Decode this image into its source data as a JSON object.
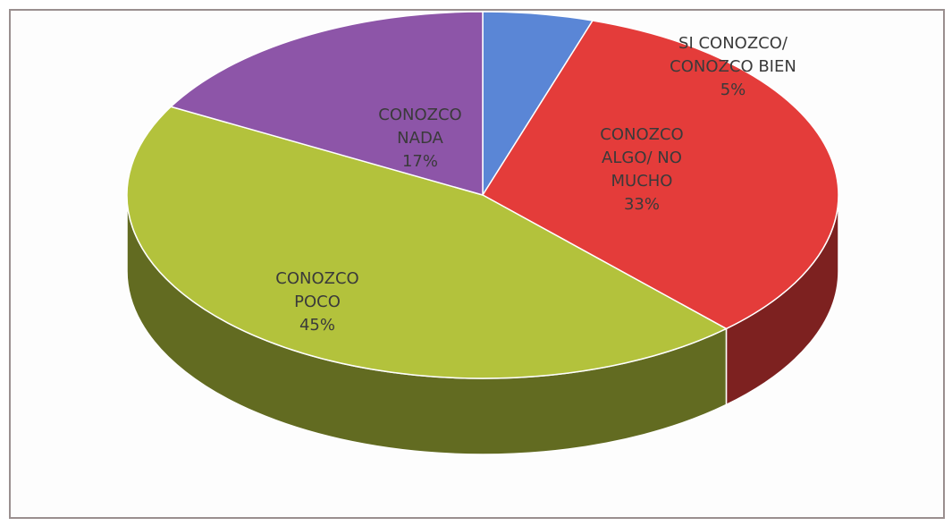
{
  "chart_data": {
    "type": "pie",
    "categories": [
      "SI CONOZCO/ CONOZCO BIEN",
      "CONOZCO ALGO/ NO MUCHO",
      "CONOZCO POCO",
      "CONOZCO NADA"
    ],
    "values": [
      5,
      33,
      45,
      17
    ],
    "value_labels": [
      "5%",
      "33%",
      "45%",
      "17%"
    ],
    "colors": [
      "#5a86d6",
      "#e43c3a",
      "#b3c23c",
      "#8d55a8"
    ],
    "style": "3d"
  }
}
